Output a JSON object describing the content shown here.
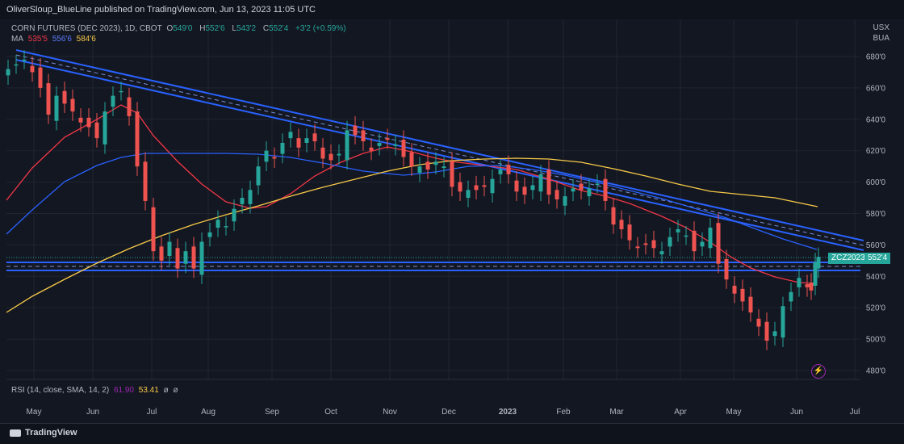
{
  "header": {
    "publisher": "OliverSloup_BlueLine published on TradingView.com, Jun 13, 2023 11:05 UTC"
  },
  "legend": {
    "symbol": "CORN FUTURES (DEC 2023), 1D, CBOT",
    "o_label": "O",
    "o_value": "549'0",
    "h_label": "H",
    "h_value": "552'6",
    "l_label": "L",
    "l_value": "543'2",
    "c_label": "C",
    "c_value": "552'4",
    "change": "+3'2 (+0.59%)",
    "ma_label": "MA",
    "ma1": "535'5",
    "ma2": "556'6",
    "ma3": "584'6"
  },
  "rsi": {
    "label": "RSI (14, close, SMA, 14, 2)",
    "v1": "61.90",
    "v2": "53.41",
    "v3": "ø",
    "v4": "ø"
  },
  "axis": {
    "unit1": "USX",
    "unit2": "BUA"
  },
  "price_tag": {
    "symbol": "ZCZ2023",
    "value": "552'4"
  },
  "footer": {
    "brand": "TradingView"
  },
  "colors": {
    "up": "#26a69a",
    "down": "#ef5350",
    "trend": "#2962ff",
    "ma_fast": "#f23645",
    "ma_mid": "#2962ff",
    "ma_slow": "#f7c948",
    "bg": "#131722"
  },
  "chart_data": {
    "type": "line",
    "title": "CORN FUTURES (DEC 2023), 1D, CBOT",
    "xlabel": "",
    "ylabel": "",
    "ylim": [
      4700,
      6850
    ],
    "y_ticks": [
      "680'0",
      "660'0",
      "640'0",
      "620'0",
      "600'0",
      "580'0",
      "560'0",
      "540'0",
      "520'0",
      "500'0",
      "480'0"
    ],
    "y_tick_values": [
      6800,
      6600,
      6400,
      6200,
      6000,
      5800,
      5600,
      5400,
      5200,
      5000,
      4800
    ],
    "x_ticks": [
      "May",
      "Jun",
      "Jul",
      "Aug",
      "Sep",
      "Oct",
      "Nov",
      "Dec",
      "2023",
      "Feb",
      "Mar",
      "Apr",
      "May",
      "Jun",
      "Jul"
    ],
    "grid": true,
    "series": [
      {
        "name": "Close",
        "x": [
          "May",
          "Jun",
          "Jul",
          "Aug",
          "Sep",
          "Oct",
          "Nov",
          "Dec",
          "2023",
          "Feb",
          "Mar",
          "Apr",
          "May",
          "Jun"
        ],
        "values": [
          6750,
          6400,
          5600,
          5500,
          6200,
          6150,
          6250,
          6050,
          6000,
          5950,
          5800,
          5500,
          5100,
          5524
        ]
      }
    ]
  }
}
